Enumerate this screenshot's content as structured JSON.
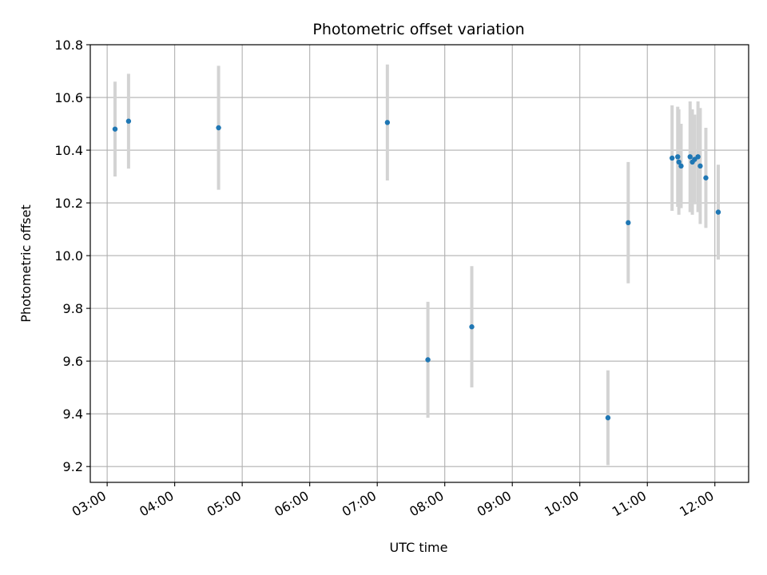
{
  "chart_data": {
    "type": "scatter",
    "title": "Photometric offset variation",
    "xlabel": "UTC time",
    "ylabel": "Photometric offset",
    "xlim": [
      "02:45",
      "12:30"
    ],
    "ylim": [
      9.14,
      10.8
    ],
    "x_ticks": [
      "03:00",
      "04:00",
      "05:00",
      "06:00",
      "07:00",
      "08:00",
      "09:00",
      "10:00",
      "11:00",
      "12:00"
    ],
    "y_ticks": [
      "9.2",
      "9.4",
      "9.6",
      "9.8",
      "10.0",
      "10.2",
      "10.4",
      "10.6",
      "10.8"
    ],
    "grid": true,
    "point_color": "#1f77b4",
    "errorbar_color": "#d3d3d3",
    "points": [
      {
        "x": "03:07",
        "y": 10.48,
        "err": 0.18
      },
      {
        "x": "03:19",
        "y": 10.51,
        "err": 0.18
      },
      {
        "x": "04:39",
        "y": 10.485,
        "err": 0.235
      },
      {
        "x": "07:09",
        "y": 10.505,
        "err": 0.22
      },
      {
        "x": "07:45",
        "y": 9.605,
        "err": 0.22
      },
      {
        "x": "08:24",
        "y": 9.73,
        "err": 0.23
      },
      {
        "x": "10:25",
        "y": 9.385,
        "err": 0.18
      },
      {
        "x": "10:43",
        "y": 10.125,
        "err": 0.23
      },
      {
        "x": "11:22",
        "y": 10.37,
        "err": 0.2
      },
      {
        "x": "11:27",
        "y": 10.375,
        "err": 0.19
      },
      {
        "x": "11:28",
        "y": 10.355,
        "err": 0.2
      },
      {
        "x": "11:30",
        "y": 10.34,
        "err": 0.16
      },
      {
        "x": "11:38",
        "y": 10.375,
        "err": 0.21
      },
      {
        "x": "11:40",
        "y": 10.355,
        "err": 0.2
      },
      {
        "x": "11:42",
        "y": 10.365,
        "err": 0.17
      },
      {
        "x": "11:45",
        "y": 10.375,
        "err": 0.21
      },
      {
        "x": "11:47",
        "y": 10.34,
        "err": 0.22
      },
      {
        "x": "11:52",
        "y": 10.295,
        "err": 0.19
      },
      {
        "x": "12:03",
        "y": 10.165,
        "err": 0.18
      }
    ]
  }
}
